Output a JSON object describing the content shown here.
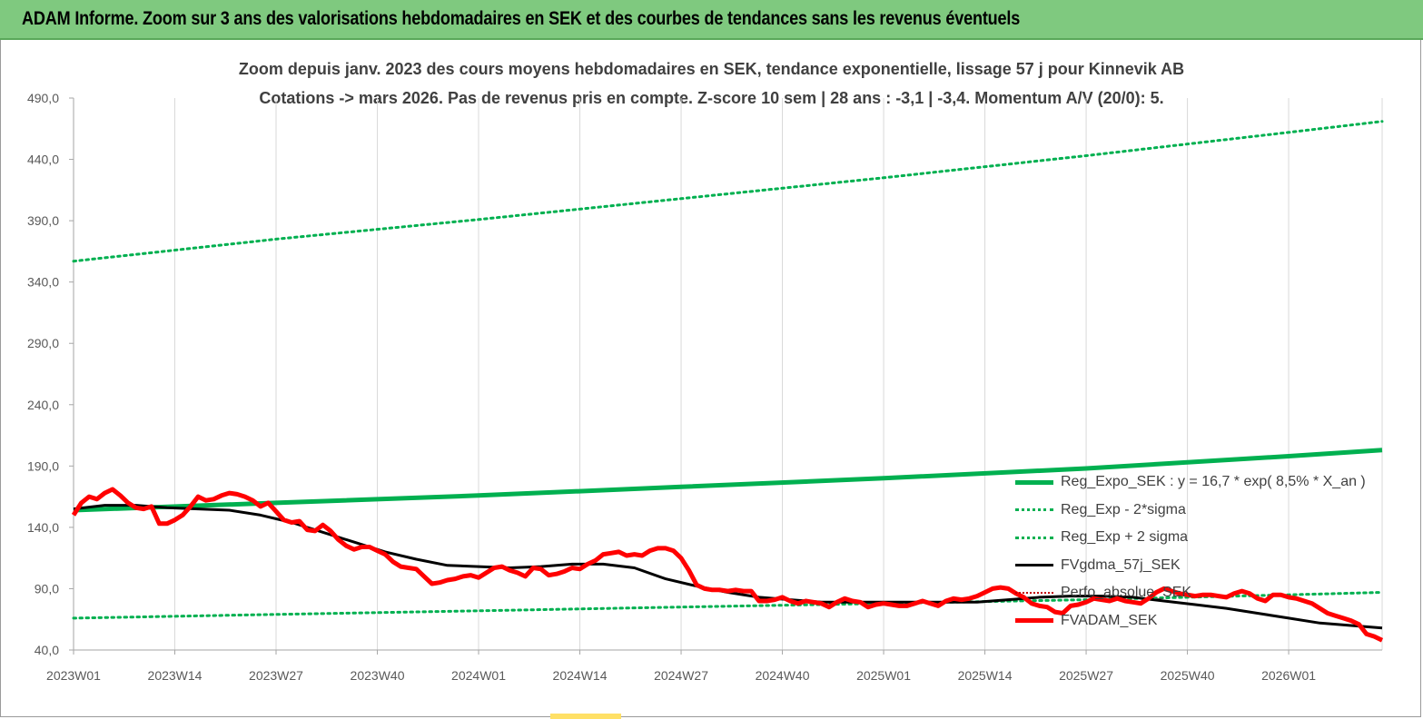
{
  "banner": {
    "title": "ADAM Informe. Zoom sur 3 ans des valorisations hebdomadaires en SEK et des courbes de tendances sans les revenus éventuels",
    "color": "#7fc97f"
  },
  "chart_data": {
    "type": "line",
    "title": "Zoom depuis janv. 2023 des cours moyens hebdomadaires en SEK, tendance exponentielle, lissage 57 j pour Kinnevik AB",
    "subtitle": "Cotations -> mars 2026. Pas de revenus pris en compte. Z-score 10 sem | 28 ans : -3,1 | -3,4. Momentum A/V (20/0): 5.",
    "xlabel": "",
    "ylabel": "",
    "ylim": [
      40,
      490
    ],
    "yticks": [
      "40,0",
      "90,0",
      "140,0",
      "190,0",
      "240,0",
      "290,0",
      "340,0",
      "390,0",
      "440,0",
      "490,0"
    ],
    "xticks": [
      "2023W01",
      "2023W14",
      "2023W27",
      "2023W40",
      "2024W01",
      "2024W14",
      "2024W27",
      "2024W40",
      "2025W01",
      "2025W14",
      "2025W27",
      "2025W40",
      "2026W01"
    ],
    "x_range_weeks": [
      0,
      168
    ],
    "grid": "vertical",
    "legend_placement": "bottom-right",
    "series": [
      {
        "name": "Reg_Expo_SEK : y = 16,7 * exp( 8,5% *  X_an )",
        "style": "solid-thick",
        "color": "#00b050",
        "points": [
          [
            0,
            154
          ],
          [
            26,
            160
          ],
          [
            52,
            166
          ],
          [
            78,
            173
          ],
          [
            104,
            180
          ],
          [
            130,
            188
          ],
          [
            156,
            198
          ],
          [
            168,
            203
          ]
        ]
      },
      {
        "name": "Reg_Exp - 2*sigma",
        "style": "dotted",
        "color": "#00b050",
        "points": [
          [
            0,
            66
          ],
          [
            26,
            69
          ],
          [
            52,
            72
          ],
          [
            78,
            75
          ],
          [
            104,
            78
          ],
          [
            130,
            81
          ],
          [
            156,
            85
          ],
          [
            168,
            87
          ]
        ]
      },
      {
        "name": "Reg_Exp + 2 sigma",
        "style": "dotted",
        "color": "#00b050",
        "points": [
          [
            0,
            357
          ],
          [
            26,
            375
          ],
          [
            52,
            391
          ],
          [
            78,
            408
          ],
          [
            104,
            425
          ],
          [
            130,
            443
          ],
          [
            156,
            462
          ],
          [
            168,
            471
          ]
        ]
      },
      {
        "name": "FVgdma_57j_SEK",
        "style": "solid",
        "color": "#000000",
        "points": [
          [
            0,
            155
          ],
          [
            4,
            158
          ],
          [
            8,
            158
          ],
          [
            12,
            156
          ],
          [
            16,
            155
          ],
          [
            20,
            154
          ],
          [
            24,
            150
          ],
          [
            28,
            144
          ],
          [
            32,
            136
          ],
          [
            36,
            128
          ],
          [
            40,
            120
          ],
          [
            44,
            114
          ],
          [
            48,
            109
          ],
          [
            52,
            108
          ],
          [
            56,
            107
          ],
          [
            60,
            108
          ],
          [
            64,
            110
          ],
          [
            68,
            110
          ],
          [
            72,
            107
          ],
          [
            76,
            98
          ],
          [
            80,
            92
          ],
          [
            84,
            87
          ],
          [
            88,
            83
          ],
          [
            92,
            81
          ],
          [
            96,
            79
          ],
          [
            100,
            79
          ],
          [
            104,
            79
          ],
          [
            108,
            79
          ],
          [
            112,
            79
          ],
          [
            116,
            79
          ],
          [
            120,
            81
          ],
          [
            124,
            83
          ],
          [
            128,
            84
          ],
          [
            132,
            84
          ],
          [
            136,
            83
          ],
          [
            140,
            80
          ],
          [
            144,
            77
          ],
          [
            148,
            74
          ],
          [
            152,
            70
          ],
          [
            156,
            66
          ],
          [
            160,
            62
          ],
          [
            164,
            60
          ],
          [
            168,
            58
          ]
        ]
      },
      {
        "name": "Perfo_absolue_SEK",
        "style": "dotted-thin",
        "color": "#c00000",
        "points": []
      },
      {
        "name": "FVADAM_SEK",
        "style": "solid-thick",
        "color": "#ff0000",
        "points": [
          [
            0,
            150
          ],
          [
            1,
            160
          ],
          [
            2,
            165
          ],
          [
            3,
            163
          ],
          [
            4,
            168
          ],
          [
            5,
            171
          ],
          [
            6,
            166
          ],
          [
            7,
            160
          ],
          [
            8,
            156
          ],
          [
            9,
            155
          ],
          [
            10,
            157
          ],
          [
            11,
            143
          ],
          [
            12,
            143
          ],
          [
            13,
            146
          ],
          [
            14,
            150
          ],
          [
            15,
            157
          ],
          [
            16,
            165
          ],
          [
            17,
            162
          ],
          [
            18,
            163
          ],
          [
            19,
            166
          ],
          [
            20,
            168
          ],
          [
            21,
            167
          ],
          [
            22,
            165
          ],
          [
            23,
            162
          ],
          [
            24,
            157
          ],
          [
            25,
            160
          ],
          [
            26,
            153
          ],
          [
            27,
            146
          ],
          [
            28,
            144
          ],
          [
            29,
            145
          ],
          [
            30,
            138
          ],
          [
            31,
            137
          ],
          [
            32,
            142
          ],
          [
            33,
            137
          ],
          [
            34,
            130
          ],
          [
            35,
            125
          ],
          [
            36,
            122
          ],
          [
            37,
            124
          ],
          [
            38,
            124
          ],
          [
            39,
            121
          ],
          [
            40,
            118
          ],
          [
            41,
            112
          ],
          [
            42,
            108
          ],
          [
            43,
            107
          ],
          [
            44,
            106
          ],
          [
            45,
            100
          ],
          [
            46,
            94
          ],
          [
            47,
            95
          ],
          [
            48,
            97
          ],
          [
            49,
            98
          ],
          [
            50,
            100
          ],
          [
            51,
            101
          ],
          [
            52,
            99
          ],
          [
            53,
            103
          ],
          [
            54,
            107
          ],
          [
            55,
            108
          ],
          [
            56,
            105
          ],
          [
            57,
            103
          ],
          [
            58,
            100
          ],
          [
            59,
            107
          ],
          [
            60,
            106
          ],
          [
            61,
            101
          ],
          [
            62,
            102
          ],
          [
            63,
            104
          ],
          [
            64,
            107
          ],
          [
            65,
            106
          ],
          [
            66,
            110
          ],
          [
            67,
            113
          ],
          [
            68,
            118
          ],
          [
            69,
            119
          ],
          [
            70,
            120
          ],
          [
            71,
            117
          ],
          [
            72,
            118
          ],
          [
            73,
            117
          ],
          [
            74,
            121
          ],
          [
            75,
            123
          ],
          [
            76,
            123
          ],
          [
            77,
            121
          ],
          [
            78,
            115
          ],
          [
            79,
            105
          ],
          [
            80,
            93
          ],
          [
            81,
            90
          ],
          [
            82,
            89
          ],
          [
            83,
            89
          ],
          [
            84,
            88
          ],
          [
            85,
            89
          ],
          [
            86,
            88
          ],
          [
            87,
            88
          ],
          [
            88,
            80
          ],
          [
            89,
            80
          ],
          [
            90,
            81
          ],
          [
            91,
            83
          ],
          [
            92,
            80
          ],
          [
            93,
            78
          ],
          [
            94,
            80
          ],
          [
            95,
            79
          ],
          [
            96,
            78
          ],
          [
            97,
            75
          ],
          [
            98,
            79
          ],
          [
            99,
            82
          ],
          [
            100,
            80
          ],
          [
            101,
            79
          ],
          [
            102,
            75
          ],
          [
            103,
            77
          ],
          [
            104,
            78
          ],
          [
            105,
            77
          ],
          [
            106,
            76
          ],
          [
            107,
            76
          ],
          [
            108,
            78
          ],
          [
            109,
            80
          ],
          [
            110,
            78
          ],
          [
            111,
            76
          ],
          [
            112,
            80
          ],
          [
            113,
            82
          ],
          [
            114,
            81
          ],
          [
            115,
            82
          ],
          [
            116,
            84
          ],
          [
            117,
            87
          ],
          [
            118,
            90
          ],
          [
            119,
            91
          ],
          [
            120,
            90
          ],
          [
            121,
            86
          ],
          [
            122,
            83
          ],
          [
            123,
            78
          ],
          [
            124,
            76
          ],
          [
            125,
            75
          ],
          [
            126,
            71
          ],
          [
            127,
            70
          ],
          [
            128,
            76
          ],
          [
            129,
            77
          ],
          [
            130,
            79
          ],
          [
            131,
            82
          ],
          [
            132,
            81
          ],
          [
            133,
            80
          ],
          [
            134,
            82
          ],
          [
            135,
            80
          ],
          [
            136,
            79
          ],
          [
            137,
            78
          ],
          [
            138,
            82
          ],
          [
            139,
            87
          ],
          [
            140,
            90
          ],
          [
            141,
            88
          ],
          [
            142,
            86
          ],
          [
            143,
            85
          ],
          [
            144,
            84
          ],
          [
            145,
            85
          ],
          [
            146,
            85
          ],
          [
            147,
            84
          ],
          [
            148,
            83
          ],
          [
            149,
            86
          ],
          [
            150,
            88
          ],
          [
            151,
            86
          ],
          [
            152,
            82
          ],
          [
            153,
            80
          ],
          [
            154,
            85
          ],
          [
            155,
            85
          ],
          [
            156,
            83
          ],
          [
            157,
            82
          ],
          [
            158,
            80
          ],
          [
            159,
            78
          ],
          [
            160,
            74
          ],
          [
            161,
            70
          ],
          [
            162,
            68
          ],
          [
            163,
            66
          ],
          [
            164,
            64
          ],
          [
            165,
            61
          ],
          [
            166,
            53
          ],
          [
            167,
            51
          ],
          [
            168,
            48
          ]
        ]
      }
    ]
  }
}
